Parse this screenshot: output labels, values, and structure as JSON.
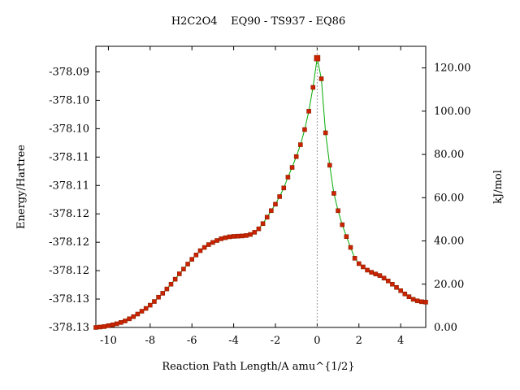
{
  "chart_data": {
    "type": "line",
    "title": "H2C2O4    EQ90 - TS937 - EQ86",
    "xlabel": "Reaction Path Length/A amu^{1/2}",
    "ylabel_left": "Energy/Hartree",
    "ylabel_right": "kJ/mol",
    "xlim": [
      -10.6,
      5.2
    ],
    "ylim_right": [
      0,
      130
    ],
    "x_ticks": [
      -10,
      -8,
      -6,
      -4,
      -2,
      0,
      2,
      4
    ],
    "x_tick_labels": [
      "-10",
      "-8",
      "-6",
      "-4",
      "-2",
      "0",
      "2",
      "4"
    ],
    "left_tick_labels": [
      "-378.13",
      "-378.13",
      "-378.12",
      "-378.12",
      "-378.12",
      "-378.11",
      "-378.11",
      "-378.10",
      "-378.10",
      "-378.09"
    ],
    "left_tick_values_kjmol": [
      0,
      13.13,
      26.26,
      39.39,
      52.52,
      65.65,
      78.78,
      91.91,
      105.04,
      118.17
    ],
    "right_ticks": [
      0,
      20,
      40,
      60,
      80,
      100,
      120
    ],
    "right_tick_labels": [
      "0.00",
      "20.00",
      "40.00",
      "60.00",
      "80.00",
      "100.00",
      "120.00"
    ],
    "ts_marker_x": 0,
    "line_color": "#00aa00",
    "marker_color": "#cc2200",
    "marker_edge_color": "#882200",
    "ts_line_color": "#999999",
    "series": [
      {
        "values": [
          [
            -10.6,
            0.0
          ],
          [
            -10.4,
            0.2
          ],
          [
            -10.2,
            0.4
          ],
          [
            -10.0,
            0.8
          ],
          [
            -9.8,
            1.2
          ],
          [
            -9.6,
            1.7
          ],
          [
            -9.4,
            2.3
          ],
          [
            -9.2,
            3.0
          ],
          [
            -9.0,
            4.0
          ],
          [
            -8.8,
            5.0
          ],
          [
            -8.6,
            6.2
          ],
          [
            -8.4,
            7.5
          ],
          [
            -8.2,
            8.8
          ],
          [
            -8.0,
            10.3
          ],
          [
            -7.8,
            12.0
          ],
          [
            -7.6,
            14.0
          ],
          [
            -7.4,
            15.8
          ],
          [
            -7.2,
            17.8
          ],
          [
            -7.0,
            20.0
          ],
          [
            -6.8,
            22.3
          ],
          [
            -6.6,
            24.8
          ],
          [
            -6.4,
            27.0
          ],
          [
            -6.2,
            29.3
          ],
          [
            -6.0,
            31.5
          ],
          [
            -5.8,
            33.5
          ],
          [
            -5.6,
            35.5
          ],
          [
            -5.4,
            37.0
          ],
          [
            -5.2,
            38.3
          ],
          [
            -5.0,
            39.3
          ],
          [
            -4.8,
            40.2
          ],
          [
            -4.6,
            41.0
          ],
          [
            -4.4,
            41.5
          ],
          [
            -4.2,
            41.9
          ],
          [
            -4.0,
            42.1
          ],
          [
            -3.8,
            42.2
          ],
          [
            -3.6,
            42.3
          ],
          [
            -3.4,
            42.5
          ],
          [
            -3.2,
            43.0
          ],
          [
            -3.0,
            44.0
          ],
          [
            -2.8,
            45.6
          ],
          [
            -2.6,
            48.0
          ],
          [
            -2.4,
            51.0
          ],
          [
            -2.2,
            54.0
          ],
          [
            -2.0,
            57.0
          ],
          [
            -1.8,
            60.5
          ],
          [
            -1.6,
            64.5
          ],
          [
            -1.4,
            69.5
          ],
          [
            -1.2,
            74.0
          ],
          [
            -1.0,
            79.0
          ],
          [
            -0.8,
            84.5
          ],
          [
            -0.6,
            91.5
          ],
          [
            -0.4,
            100.0
          ],
          [
            -0.2,
            111.0
          ],
          [
            0.0,
            124.5
          ],
          [
            0.2,
            115.0
          ],
          [
            0.4,
            90.0
          ],
          [
            0.6,
            75.0
          ],
          [
            0.8,
            62.0
          ],
          [
            1.0,
            54.0
          ],
          [
            1.2,
            47.5
          ],
          [
            1.4,
            42.0
          ],
          [
            1.6,
            37.0
          ],
          [
            1.8,
            32.0
          ],
          [
            2.0,
            29.5
          ],
          [
            2.2,
            28.0
          ],
          [
            2.4,
            26.5
          ],
          [
            2.6,
            25.5
          ],
          [
            2.8,
            24.7
          ],
          [
            3.0,
            24.0
          ],
          [
            3.2,
            22.8
          ],
          [
            3.4,
            21.5
          ],
          [
            3.6,
            20.0
          ],
          [
            3.8,
            18.5
          ],
          [
            4.0,
            17.0
          ],
          [
            4.2,
            15.5
          ],
          [
            4.4,
            14.2
          ],
          [
            4.6,
            13.0
          ],
          [
            4.8,
            12.3
          ],
          [
            5.0,
            11.9
          ],
          [
            5.2,
            11.7
          ]
        ]
      }
    ]
  }
}
